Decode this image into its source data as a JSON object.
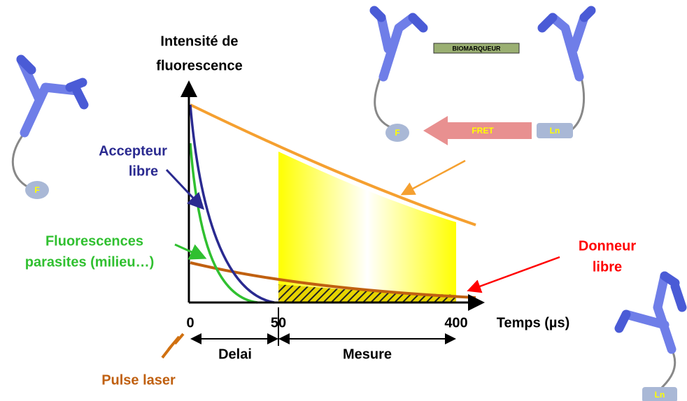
{
  "axis": {
    "y_label_line1": "Intensité de",
    "y_label_line2": "fluorescence",
    "x_label": "Temps (µs)",
    "ticks": [
      "0",
      "50",
      "400"
    ]
  },
  "labels": {
    "acceptor_line1": "Accepteur",
    "acceptor_line2": "libre",
    "parasites_line1": "Fluorescences",
    "parasites_line2": "parasites (milieu…)",
    "donor_line1": "Donneur",
    "donor_line2": "libre",
    "pulse": "Pulse laser"
  },
  "intervals": {
    "delay": "Delai",
    "measure": "Mesure"
  },
  "complex": {
    "biomarker": "BIOMARQUEUR",
    "fret": "FRET",
    "donor": "Ln",
    "acceptor": "F"
  },
  "free_acceptor": {
    "label": "F"
  },
  "free_donor": {
    "label": "Ln"
  }
}
